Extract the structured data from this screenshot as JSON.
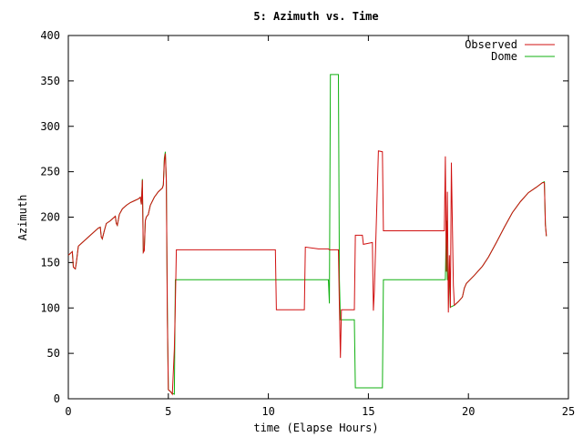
{
  "chart_data": {
    "type": "line",
    "title": "5: Azimuth vs. Time",
    "xlabel": "time (Elapse Hours)",
    "ylabel": "Azimuth",
    "xlim": [
      0,
      25
    ],
    "ylim": [
      0,
      400
    ],
    "xticks": [
      0,
      5,
      10,
      15,
      20,
      25
    ],
    "yticks": [
      0,
      50,
      100,
      150,
      200,
      250,
      300,
      350,
      400
    ],
    "grid": false,
    "legend": "top-right",
    "series": [
      {
        "name": "Observed",
        "color": "#d01010",
        "points": [
          [
            0.0,
            158
          ],
          [
            0.1,
            160
          ],
          [
            0.2,
            162
          ],
          [
            0.25,
            145
          ],
          [
            0.35,
            143
          ],
          [
            0.4,
            150
          ],
          [
            0.5,
            168
          ],
          [
            0.7,
            172
          ],
          [
            0.9,
            176
          ],
          [
            1.1,
            180
          ],
          [
            1.3,
            184
          ],
          [
            1.5,
            188
          ],
          [
            1.6,
            189
          ],
          [
            1.65,
            178
          ],
          [
            1.7,
            176
          ],
          [
            1.8,
            185
          ],
          [
            1.9,
            193
          ],
          [
            2.1,
            196
          ],
          [
            2.2,
            198
          ],
          [
            2.35,
            201
          ],
          [
            2.4,
            193
          ],
          [
            2.45,
            191
          ],
          [
            2.55,
            203
          ],
          [
            2.7,
            209
          ],
          [
            2.9,
            213
          ],
          [
            3.1,
            216
          ],
          [
            3.3,
            218
          ],
          [
            3.5,
            220
          ],
          [
            3.6,
            222
          ],
          [
            3.65,
            214
          ],
          [
            3.7,
            241
          ],
          [
            3.75,
            161
          ],
          [
            3.8,
            163
          ],
          [
            3.85,
            196
          ],
          [
            3.9,
            200
          ],
          [
            4.0,
            203
          ],
          [
            4.1,
            213
          ],
          [
            4.3,
            222
          ],
          [
            4.5,
            228
          ],
          [
            4.7,
            232
          ],
          [
            4.75,
            235
          ],
          [
            4.8,
            262
          ],
          [
            4.85,
            270
          ],
          [
            4.9,
            240
          ],
          [
            4.95,
            90
          ],
          [
            5.0,
            10
          ],
          [
            5.1,
            8
          ],
          [
            5.2,
            5
          ],
          [
            5.3,
            55
          ],
          [
            5.35,
            105
          ],
          [
            5.4,
            164
          ],
          [
            10.35,
            164
          ],
          [
            10.4,
            98
          ],
          [
            11.8,
            98
          ],
          [
            11.85,
            167
          ],
          [
            12.5,
            165
          ],
          [
            13.0,
            165
          ],
          [
            13.05,
            164
          ],
          [
            13.5,
            164
          ],
          [
            13.55,
            100
          ],
          [
            13.6,
            45
          ],
          [
            13.65,
            98
          ],
          [
            14.3,
            98
          ],
          [
            14.35,
            180
          ],
          [
            14.7,
            180
          ],
          [
            14.75,
            170
          ],
          [
            15.2,
            172
          ],
          [
            15.25,
            97
          ],
          [
            15.3,
            120
          ],
          [
            15.5,
            273
          ],
          [
            15.7,
            272
          ],
          [
            15.75,
            185
          ],
          [
            18.8,
            185
          ],
          [
            18.85,
            267
          ],
          [
            18.9,
            140
          ],
          [
            18.95,
            228
          ],
          [
            19.0,
            95
          ],
          [
            19.05,
            158
          ],
          [
            19.1,
            100
          ],
          [
            19.15,
            260
          ],
          [
            19.25,
            125
          ],
          [
            19.3,
            103
          ],
          [
            19.5,
            107
          ],
          [
            19.7,
            112
          ],
          [
            19.8,
            122
          ],
          [
            19.9,
            127
          ],
          [
            20.3,
            136
          ],
          [
            20.7,
            146
          ],
          [
            21.0,
            156
          ],
          [
            21.4,
            172
          ],
          [
            21.8,
            189
          ],
          [
            22.2,
            205
          ],
          [
            22.6,
            217
          ],
          [
            23.0,
            227
          ],
          [
            23.4,
            233
          ],
          [
            23.7,
            238
          ],
          [
            23.8,
            238
          ],
          [
            23.85,
            192
          ],
          [
            23.9,
            179
          ]
        ]
      },
      {
        "name": "Dome",
        "color": "#10b010",
        "points": [
          [
            0.0,
            158
          ],
          [
            0.1,
            160
          ],
          [
            0.2,
            162
          ],
          [
            0.25,
            145
          ],
          [
            0.35,
            143
          ],
          [
            0.4,
            150
          ],
          [
            0.5,
            168
          ],
          [
            0.7,
            172
          ],
          [
            0.9,
            176
          ],
          [
            1.1,
            180
          ],
          [
            1.3,
            184
          ],
          [
            1.5,
            188
          ],
          [
            1.6,
            189
          ],
          [
            1.65,
            178
          ],
          [
            1.7,
            176
          ],
          [
            1.8,
            185
          ],
          [
            1.9,
            193
          ],
          [
            2.1,
            196
          ],
          [
            2.2,
            198
          ],
          [
            2.35,
            201
          ],
          [
            2.4,
            193
          ],
          [
            2.45,
            191
          ],
          [
            2.55,
            203
          ],
          [
            2.7,
            209
          ],
          [
            2.9,
            213
          ],
          [
            3.1,
            216
          ],
          [
            3.3,
            218
          ],
          [
            3.5,
            220
          ],
          [
            3.6,
            222
          ],
          [
            3.65,
            214
          ],
          [
            3.7,
            242
          ],
          [
            3.75,
            162
          ],
          [
            3.8,
            164
          ],
          [
            3.85,
            196
          ],
          [
            3.9,
            200
          ],
          [
            4.0,
            203
          ],
          [
            4.1,
            213
          ],
          [
            4.3,
            222
          ],
          [
            4.5,
            228
          ],
          [
            4.7,
            232
          ],
          [
            4.75,
            236
          ],
          [
            4.8,
            265
          ],
          [
            4.85,
            272
          ],
          [
            4.9,
            240
          ],
          [
            4.95,
            100
          ],
          [
            5.0,
            10
          ],
          [
            5.1,
            8
          ],
          [
            5.2,
            6
          ],
          [
            5.3,
            5
          ],
          [
            5.35,
            131
          ],
          [
            13.0,
            131
          ],
          [
            13.05,
            105
          ],
          [
            13.1,
            357
          ],
          [
            13.5,
            357
          ],
          [
            13.55,
            131
          ],
          [
            13.6,
            87
          ],
          [
            14.3,
            87
          ],
          [
            14.35,
            12
          ],
          [
            15.7,
            12
          ],
          [
            15.75,
            131
          ],
          [
            18.85,
            131
          ],
          [
            18.9,
            196
          ],
          [
            18.95,
            131
          ],
          [
            19.0,
            131
          ],
          [
            19.05,
            130
          ],
          [
            19.1,
            101
          ],
          [
            19.3,
            103
          ],
          [
            19.5,
            107
          ],
          [
            19.7,
            112
          ],
          [
            19.8,
            122
          ],
          [
            19.9,
            127
          ],
          [
            20.3,
            136
          ],
          [
            20.7,
            146
          ],
          [
            21.0,
            156
          ],
          [
            21.4,
            172
          ],
          [
            21.8,
            189
          ],
          [
            22.2,
            205
          ],
          [
            22.6,
            217
          ],
          [
            23.0,
            227
          ],
          [
            23.4,
            233
          ],
          [
            23.7,
            238
          ],
          [
            23.8,
            239
          ],
          [
            23.85,
            192
          ],
          [
            23.9,
            179
          ]
        ]
      }
    ]
  }
}
